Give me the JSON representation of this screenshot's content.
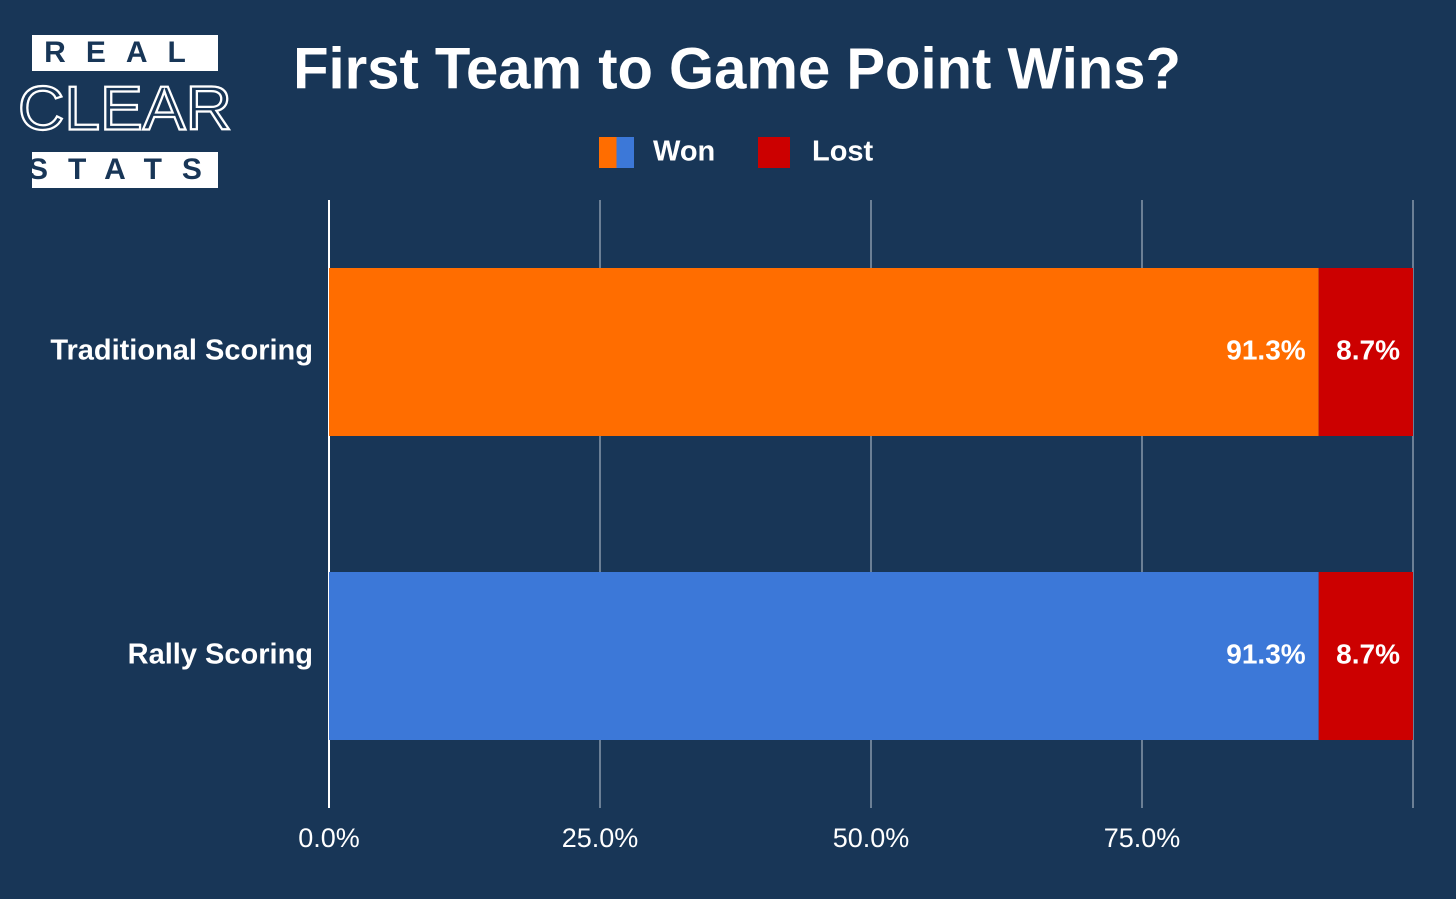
{
  "logo": {
    "top": "REAL",
    "middle": "CLEAR",
    "bottom": "STATS"
  },
  "chart_data": {
    "type": "stacked-bar-horizontal",
    "title": "First Team to Game Point Wins?",
    "categories": [
      "Traditional Scoring",
      "Rally Scoring"
    ],
    "series": [
      {
        "name": "Won",
        "colors": [
          "#ff6d00",
          "#3c78d8"
        ],
        "values": [
          91.3,
          91.3
        ],
        "value_labels": [
          "91.3%",
          "91.3%"
        ]
      },
      {
        "name": "Lost",
        "color": "#cc0000",
        "values": [
          8.7,
          8.7
        ],
        "value_labels": [
          "8.7%",
          "8.7%"
        ]
      }
    ],
    "xlim": [
      0,
      100
    ],
    "xticks": [
      {
        "value": 0,
        "label": "0.0%"
      },
      {
        "value": 25,
        "label": "25.0%"
      },
      {
        "value": 50,
        "label": "50.0%"
      },
      {
        "value": 75,
        "label": "75.0%"
      }
    ],
    "grid": true,
    "legend": "top"
  }
}
